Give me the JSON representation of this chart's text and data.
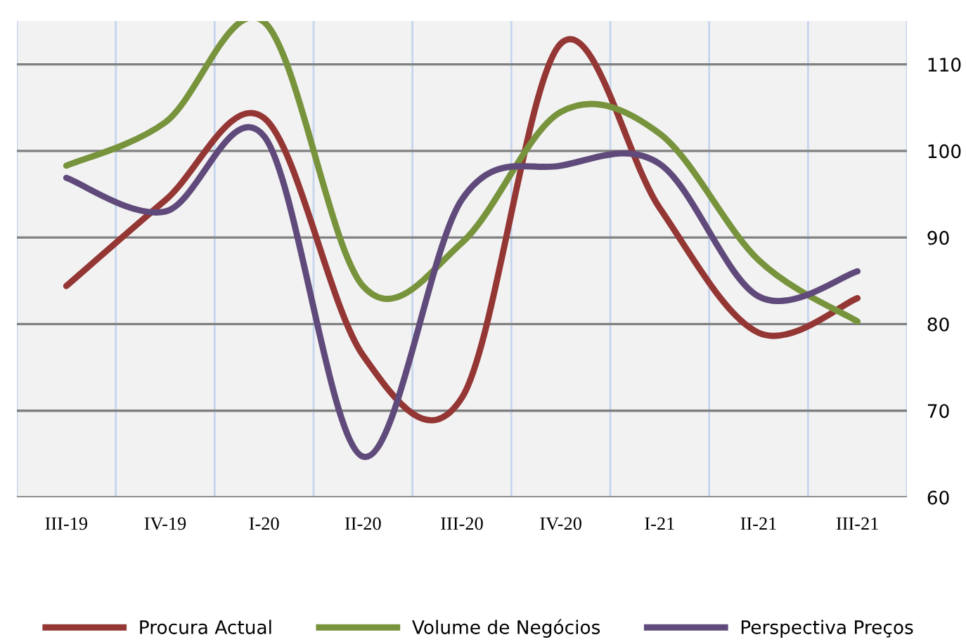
{
  "chart_data": {
    "type": "line",
    "categories": [
      "III-19",
      "IV-19",
      "I-20",
      "II-20",
      "III-20",
      "IV-20",
      "I-21",
      "II-21",
      "III-21"
    ],
    "series": [
      {
        "name": "Procura Actual",
        "color": "#943634",
        "values": [
          84.4,
          94.3,
          103.8,
          76.4,
          71.5,
          112.4,
          93.4,
          79,
          83
        ]
      },
      {
        "name": "Volume de Negócios",
        "color": "#77933c",
        "values": [
          98.3,
          103.3,
          114.9,
          84.4,
          89.4,
          104.5,
          102,
          87.4,
          80.3
        ]
      },
      {
        "name": "Perspectiva Preços",
        "color": "#604a7b",
        "values": [
          96.9,
          93,
          101.7,
          64.7,
          94.4,
          98.3,
          98.5,
          83.2,
          86.1
        ]
      }
    ],
    "ylim": [
      60,
      115
    ],
    "yticks": [
      60,
      70,
      80,
      90,
      100,
      110
    ],
    "grid": true,
    "legend": "bottom",
    "marker": "none",
    "line_style": "solid"
  }
}
